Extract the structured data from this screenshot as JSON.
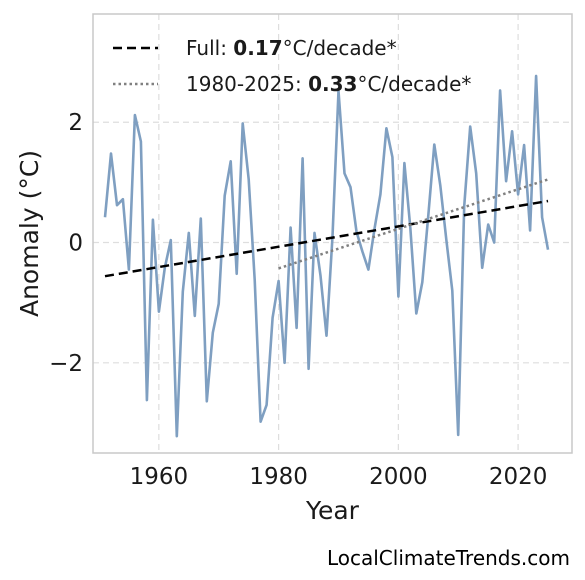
{
  "chart_data": {
    "type": "line",
    "xlabel": "Year",
    "ylabel": "Anomaly (°C)",
    "xlim": [
      1949,
      2029
    ],
    "ylim": [
      -3.5,
      3.8
    ],
    "xticks": [
      1960,
      1980,
      2000,
      2020
    ],
    "yticks": [
      -2,
      0,
      2
    ],
    "ytick_labels": [
      "−2",
      "0",
      "2"
    ],
    "grid": true,
    "legend_position": "top-left",
    "series": [
      {
        "style": "solid",
        "color": "#7f9fc1",
        "x": [
          1951,
          1952,
          1953,
          1954,
          1955,
          1956,
          1957,
          1958,
          1959,
          1960,
          1961,
          1962,
          1963,
          1964,
          1965,
          1966,
          1967,
          1968,
          1969,
          1970,
          1971,
          1972,
          1973,
          1974,
          1975,
          1976,
          1977,
          1978,
          1979,
          1980,
          1981,
          1982,
          1983,
          1984,
          1985,
          1986,
          1987,
          1988,
          1989,
          1990,
          1991,
          1992,
          1993,
          1994,
          1995,
          1996,
          1997,
          1998,
          1999,
          2000,
          2001,
          2002,
          2003,
          2004,
          2005,
          2006,
          2007,
          2008,
          2009,
          2010,
          2011,
          2012,
          2013,
          2014,
          2015,
          2016,
          2017,
          2018,
          2019,
          2020,
          2021,
          2022,
          2023,
          2024,
          2025
        ],
        "y": [
          0.42,
          1.48,
          0.62,
          0.72,
          -0.45,
          2.12,
          1.68,
          -2.62,
          0.38,
          -1.15,
          -0.42,
          0.04,
          -3.22,
          -0.82,
          0.16,
          -1.22,
          0.4,
          -2.64,
          -1.5,
          -1.02,
          0.78,
          1.35,
          -0.52,
          1.98,
          1.05,
          -0.62,
          -2.98,
          -2.7,
          -1.25,
          -0.64,
          -2.0,
          0.25,
          -1.42,
          1.4,
          -2.1,
          0.16,
          -0.55,
          -1.55,
          0.1,
          2.52,
          1.15,
          0.92,
          0.18,
          -0.15,
          -0.45,
          0.22,
          0.8,
          1.9,
          1.42,
          -0.9,
          1.32,
          0.25,
          -1.18,
          -0.66,
          0.45,
          1.63,
          0.95,
          0.05,
          -0.8,
          -3.2,
          0.6,
          1.93,
          1.15,
          -0.42,
          0.3,
          0.0,
          2.53,
          1.02,
          1.85,
          0.8,
          1.62,
          0.2,
          2.77,
          0.42,
          -0.12
        ]
      },
      {
        "name": "Full",
        "style": "dashed",
        "color": "#000000",
        "x": [
          1951,
          2025
        ],
        "y": [
          -0.56,
          0.69
        ]
      },
      {
        "name": "1980-2025",
        "style": "dotted",
        "color": "#808080",
        "x": [
          1980,
          2025
        ],
        "y": [
          -0.43,
          1.05
        ]
      }
    ],
    "legend": [
      {
        "prefix": "Full: ",
        "value": "0.17",
        "unit": "°C/decade*"
      },
      {
        "prefix": "1980-2025: ",
        "value": "0.33",
        "unit": "°C/decade*"
      }
    ]
  },
  "credit": "LocalClimateTrends.com"
}
